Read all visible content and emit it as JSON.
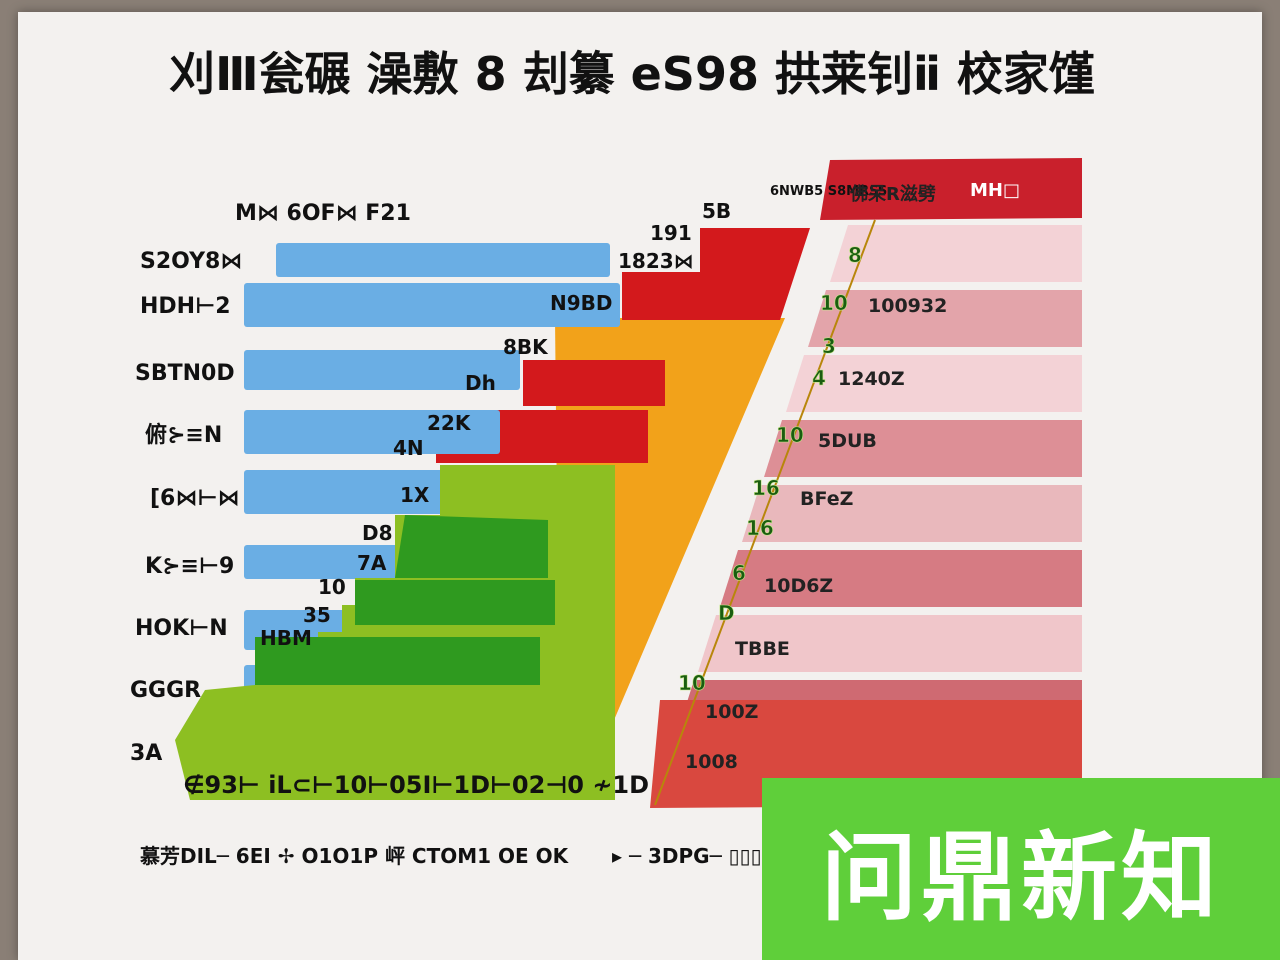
{
  "chart_data": {
    "type": "bar",
    "title": "刈Ⅲ瓮碾 澡敷 8 刦纂 eS98 拱莱钊ⅱ 校家馑",
    "subtitle": "M⋈ 6OF⋈ F21",
    "left_categories": [
      "S2OY8⋈",
      "HDH⊢2",
      "SBTN0D",
      "俯⊱≡N",
      "[6⋈⊢⋈",
      "K⊱≡⊢9",
      "HOK⊢N",
      "GGGR",
      "3A"
    ],
    "left_series": [
      {
        "name": "blue",
        "color": "#6aaee4",
        "labels": [
          "",
          "",
          "",
          "",
          "",
          "",
          "",
          "",
          ""
        ],
        "values": [
          610,
          620,
          520,
          500,
          500,
          480,
          500,
          480,
          430
        ]
      },
      {
        "name": "stepped",
        "labels": [
          "",
          "N9BD",
          "8BK",
          "Dh",
          "22K / 4N",
          "1X",
          "D8 / 7A",
          "10 / 35",
          "HBM"
        ],
        "values": [
          0,
          0,
          0,
          0,
          0,
          0,
          0,
          0,
          0
        ]
      }
    ],
    "step_labels": [
      "191",
      "1823⋈",
      "5B",
      "N9BD",
      "8BK",
      "Dh",
      "22K",
      "4N",
      "1X",
      "D8",
      "7A",
      "10",
      "35",
      "HBM"
    ],
    "right_categories": [
      "8",
      "10",
      "3",
      "4",
      "10",
      "16",
      "16",
      "6",
      "D",
      "10",
      ""
    ],
    "right_labels": [
      "",
      "100932",
      "",
      "1240Z",
      "5DUB",
      "BFeZ",
      "",
      "10D6Z",
      "TBBE",
      "100Z",
      "1008"
    ],
    "right_header": [
      "6NWB5 S8MRSS",
      "佛呆R滋劈",
      "MH□"
    ],
    "x_axis_text": "∉93⊢ iL⊂⊢10⊢05I⊢1D⊢02⊣0 ≁1D",
    "footer_left": "慕芳DIL─ 6EI ✢ O1O1P 岼 CTOM1 OE OK",
    "footer_right": "▸ ─ 3DPG─ ▯▯▯▯▯▯▯▯▯▯"
  },
  "watermark": "问鼎新知",
  "colors": {
    "blue": "#6aaee4",
    "red": "#d3191c",
    "orange": "#f2a21a",
    "green": "#2f9a1f",
    "lime": "#8dbf22",
    "pink": "#e9b8bc",
    "deep_red": "#c9202c"
  }
}
